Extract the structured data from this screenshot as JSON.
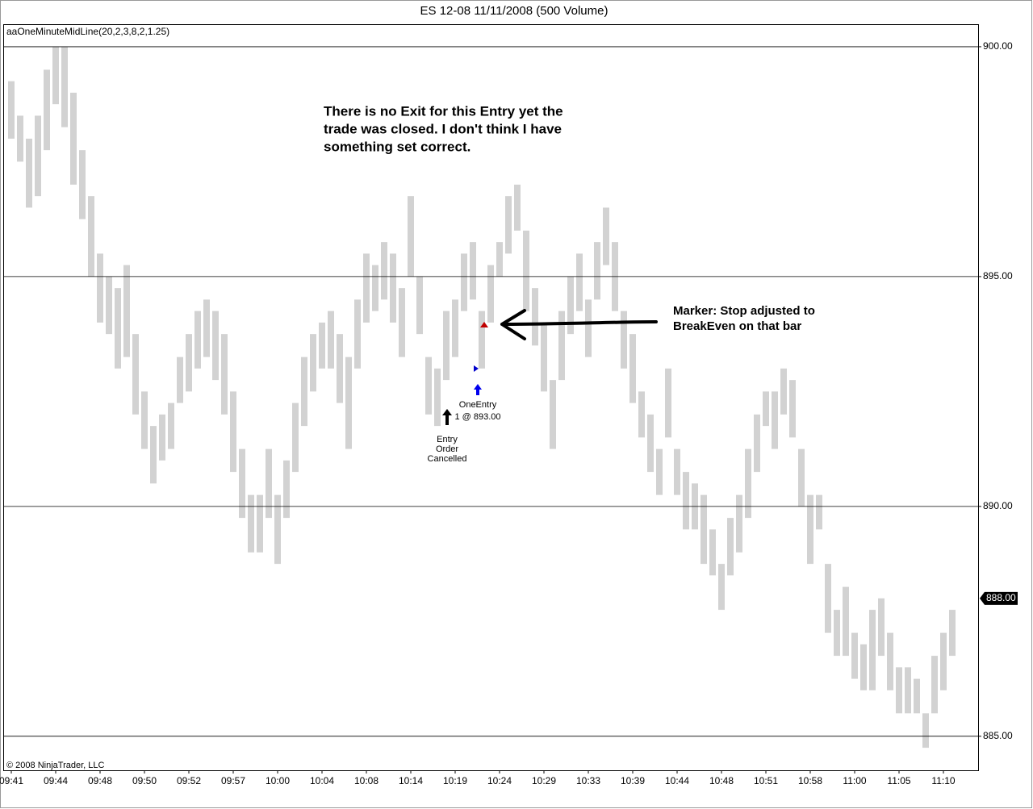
{
  "chart_data": {
    "type": "ohlc",
    "title": "ES 12-08  11/11/2008 (500 Volume)",
    "indicator_label": "aaOneMinuteMidLine(20,2,3,8,2,1.25)",
    "copyright": "© 2008 NinjaTrader, LLC",
    "annotation": {
      "lines": [
        "There is no Exit for this Entry yet the",
        "trade was closed.    I don't think I have",
        "something set correct."
      ]
    },
    "marker_note": {
      "lines": [
        "Marker:  Stop adjusted to",
        "BreakEven on that bar"
      ]
    },
    "entry_cancelled": {
      "lines": [
        "Entry",
        "Order",
        "Cancelled"
      ]
    },
    "one_entry": {
      "lines": [
        "OneEntry",
        "1 @ 893.00"
      ]
    },
    "color": "#d2d2d2",
    "categories": [
      "09:41",
      null,
      null,
      null,
      null,
      "09:44",
      null,
      null,
      null,
      null,
      "09:48",
      null,
      null,
      null,
      null,
      "09:50",
      null,
      null,
      null,
      null,
      "09:52",
      null,
      null,
      null,
      null,
      "09:57",
      null,
      null,
      null,
      null,
      "10:00",
      null,
      null,
      null,
      null,
      "10:04",
      null,
      null,
      null,
      null,
      "10:08",
      null,
      null,
      null,
      null,
      "10:14",
      null,
      null,
      null,
      null,
      "10:19",
      null,
      null,
      null,
      null,
      "10:24",
      null,
      null,
      null,
      null,
      "10:29",
      null,
      null,
      null,
      null,
      "10:33",
      null,
      null,
      null,
      null,
      "10:39",
      null,
      null,
      null,
      null,
      "10:44",
      null,
      null,
      null,
      null,
      "10:48",
      null,
      null,
      null,
      null,
      "10:51",
      null,
      null,
      null,
      null,
      "10:58",
      null,
      null,
      null,
      null,
      "11:00",
      null,
      null,
      null,
      null,
      "11:05",
      null,
      null,
      null,
      null,
      "11:10",
      null
    ],
    "highs": [
      899.25,
      898.5,
      898,
      898.5,
      899.5,
      900,
      900,
      899,
      897.75,
      896.75,
      895.5,
      895,
      894.75,
      895.25,
      893.75,
      892.5,
      891.75,
      892,
      892.25,
      893.25,
      893.75,
      894.25,
      894.5,
      894.25,
      893.75,
      892.5,
      891.25,
      890.25,
      890.25,
      891.25,
      890.25,
      891,
      892.25,
      893.25,
      893.75,
      894,
      894.25,
      893.75,
      893.25,
      894.5,
      895.5,
      895.25,
      895.75,
      895.5,
      894.75,
      896.75,
      895,
      893.25,
      893,
      894.25,
      894.5,
      895.5,
      895.75,
      894.25,
      895.25,
      895.75,
      896.75,
      897,
      896,
      894.75,
      894,
      892.75,
      894.25,
      895,
      895.5,
      894.5,
      895.75,
      896.5,
      895.75,
      894.25,
      893.75,
      892.5,
      892,
      891.25,
      893,
      891.25,
      890.75,
      890.5,
      890.25,
      889.5,
      888.75,
      889.75,
      890.25,
      891.25,
      892,
      892.5,
      892.5,
      893,
      892.75,
      891.25,
      890.25,
      890.25,
      888.75,
      887.75,
      888.25,
      887.25,
      887,
      887.75,
      888,
      887.25,
      886.5,
      886.5,
      886.25,
      885.5,
      886.75,
      887.25,
      887.75
    ],
    "lows": [
      898,
      897.5,
      896.5,
      896.75,
      897.75,
      898.75,
      898.25,
      897,
      896.25,
      895,
      894,
      893.75,
      893,
      893.25,
      892,
      891.25,
      890.5,
      891,
      891.25,
      892.25,
      892.5,
      893,
      893.25,
      892.75,
      892,
      890.75,
      889.75,
      889,
      889,
      889.75,
      888.75,
      889.75,
      890.75,
      891.75,
      892.5,
      893,
      893,
      892.25,
      891.25,
      893,
      894,
      894.25,
      894.5,
      894,
      893.25,
      895,
      893.75,
      892,
      891.75,
      892.75,
      893.25,
      894.25,
      894.5,
      893,
      894,
      895,
      895.5,
      896,
      894.25,
      893.5,
      892.5,
      891.25,
      892.75,
      893.75,
      894.25,
      893.25,
      894.5,
      895.25,
      894.25,
      893,
      892.25,
      891.5,
      890.75,
      890.25,
      891.5,
      890.25,
      889.5,
      889.5,
      888.75,
      888.5,
      887.75,
      888.5,
      889,
      889.75,
      890.75,
      891.75,
      891.25,
      892,
      891.5,
      890,
      888.75,
      889.5,
      887.25,
      886.75,
      886.75,
      886.25,
      886,
      886,
      886.75,
      886,
      885.5,
      885.5,
      885.5,
      884.75,
      885.5,
      886,
      886.75
    ],
    "ylim": [
      884.26,
      900.49
    ],
    "yticks": [
      {
        "value": 885,
        "label": "885.00"
      },
      {
        "value": 890,
        "label": "890.00"
      },
      {
        "value": 895,
        "label": "895.00"
      },
      {
        "value": 900,
        "label": "900.00"
      }
    ],
    "grid": true,
    "last_price": {
      "value": 888,
      "label": "888.00"
    }
  }
}
